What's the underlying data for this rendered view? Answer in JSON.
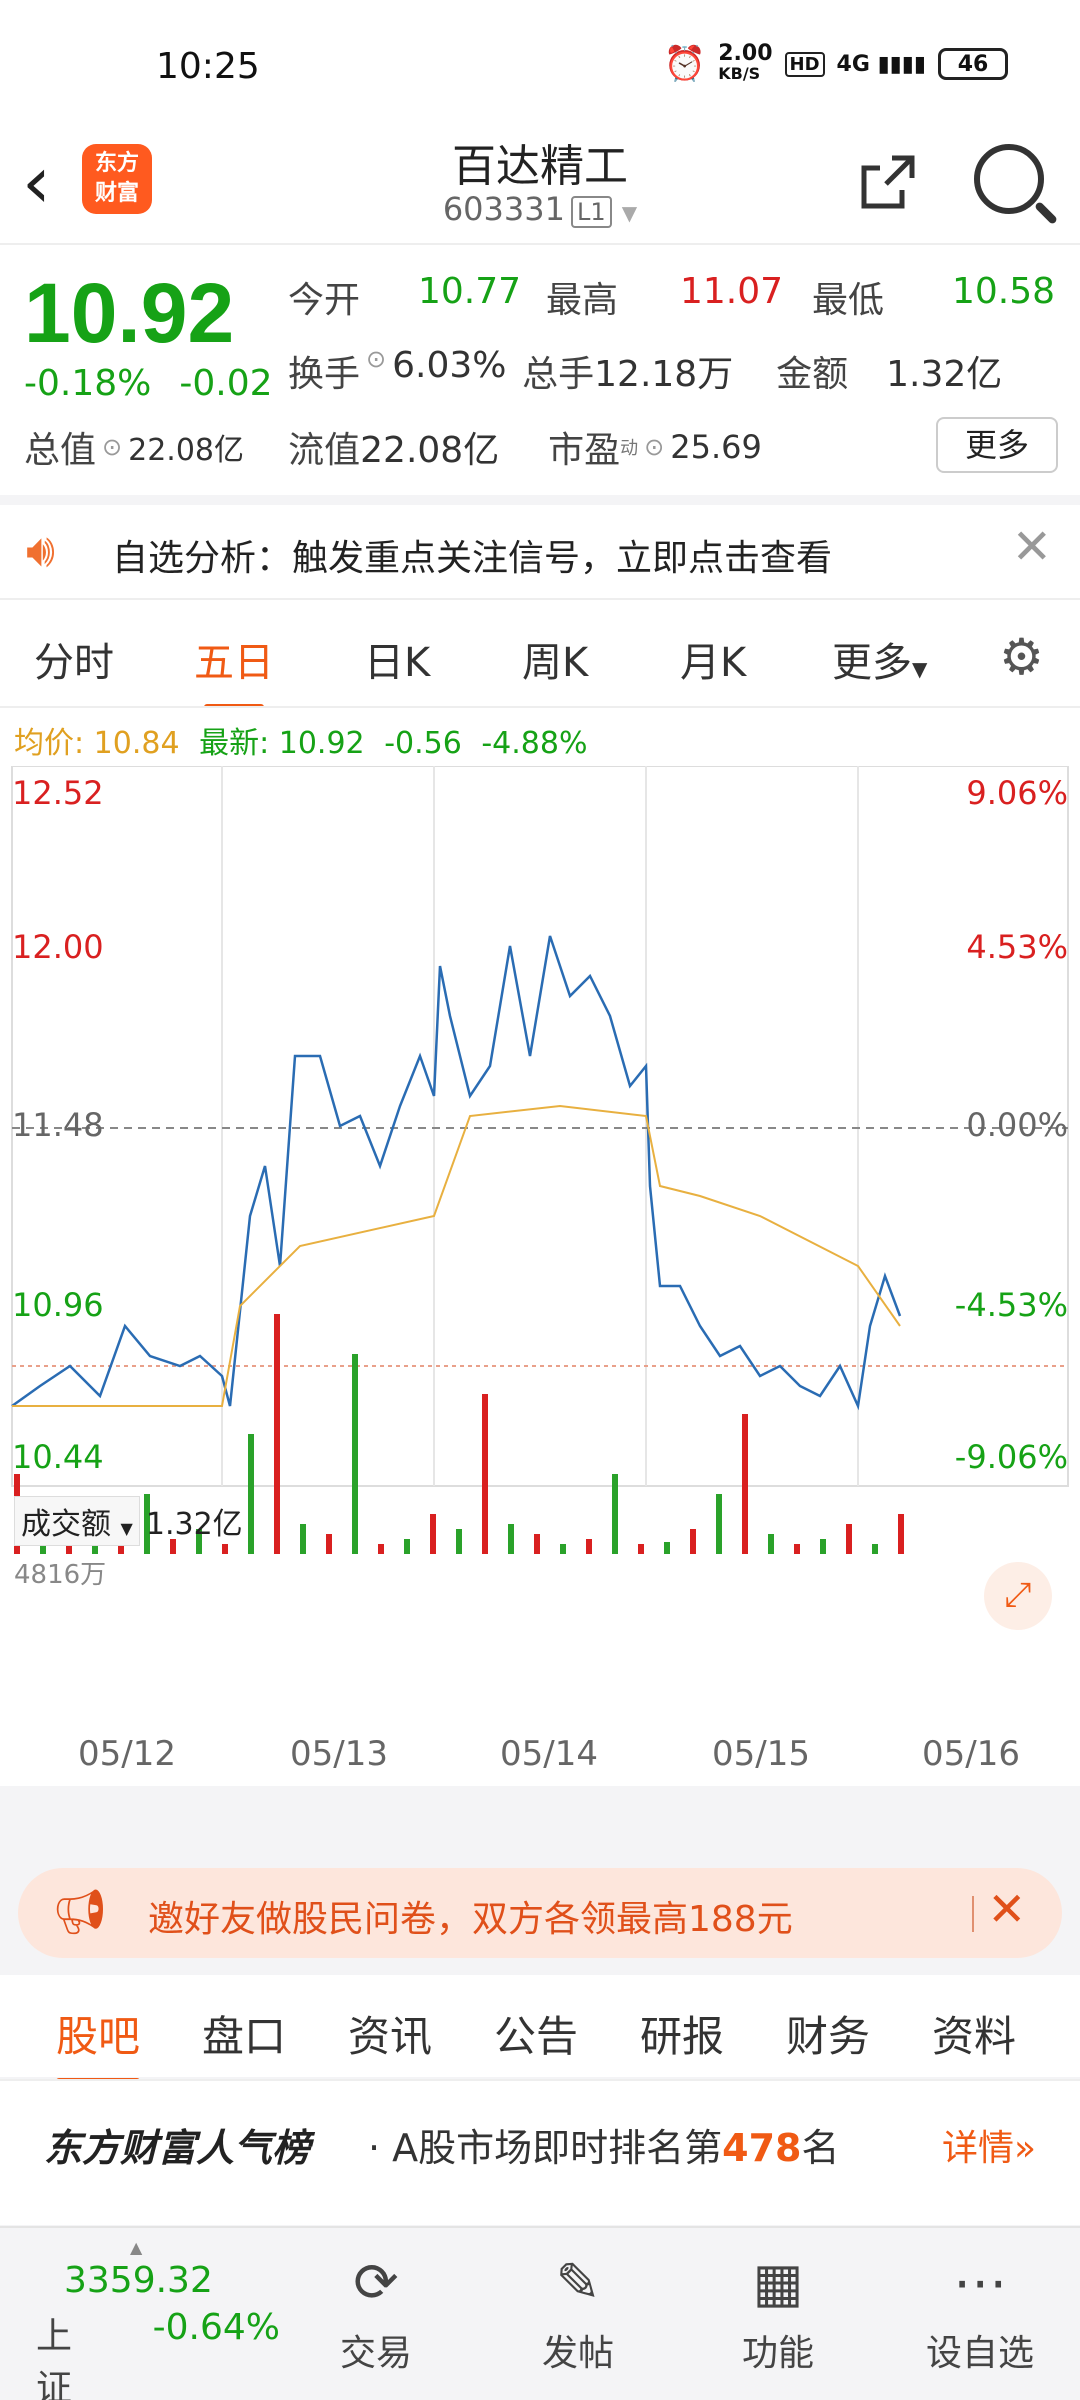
{
  "status_bar": {
    "time": "10:25",
    "net_speed": "2.00",
    "net_unit": "KB/S",
    "hd": "HD",
    "signal": "4G",
    "battery": "46"
  },
  "header": {
    "logo_text": "东方\n财富",
    "logo_l1": "东方",
    "logo_l2": "财富",
    "title": "百达精工",
    "code": "603331",
    "level": "L1"
  },
  "quote": {
    "price": "10.92",
    "change_pct": "-0.18%",
    "change": "-0.02",
    "open_label": "今开",
    "open": "10.77",
    "high_label": "最高",
    "high": "11.07",
    "low_label": "最低",
    "low": "10.58",
    "turnover_label": "换手",
    "turnover": "6.03%",
    "volume_label": "总手",
    "volume": "12.18万",
    "amount_label": "金额",
    "amount": "1.32亿",
    "total_value_label": "总值",
    "total_value": "22.08亿",
    "float_value_label": "流值",
    "float_value": "22.08亿",
    "pe_label": "市盈",
    "pe_sup": "动",
    "pe": "25.69",
    "more_button": "更多"
  },
  "alert": {
    "text": "自选分析：触发重点关注信号，立即点击查看"
  },
  "chart_tabs": [
    "分时",
    "五日",
    "日K",
    "周K",
    "月K",
    "更多"
  ],
  "active_chart_tab": "五日",
  "avg_bar": {
    "avg_label": "均价:",
    "avg": "10.84",
    "latest_label": "最新:",
    "latest": "10.92",
    "chg": "-0.56",
    "pct": "-4.88%"
  },
  "chart_data": {
    "type": "line",
    "y_left_ticks": [
      "12.52",
      "12.00",
      "11.48",
      "10.96",
      "10.44"
    ],
    "y_right_ticks": [
      "9.06%",
      "4.53%",
      "0.00%",
      "-4.53%",
      "-9.06%"
    ],
    "ylim": [
      10.44,
      12.52
    ],
    "x_labels": [
      "05/12",
      "05/13",
      "05/14",
      "05/15",
      "05/16"
    ],
    "volume_label": "成交额",
    "volume_total": "1.32亿",
    "volume_max_label": "4816万"
  },
  "promo": {
    "text": "邀好友做股民问卷，双方各领最高188元"
  },
  "footer_tabs": [
    "股吧",
    "盘口",
    "资讯",
    "公告",
    "研报",
    "财务",
    "资料"
  ],
  "active_footer_tab": "股吧",
  "rank": {
    "brand": "东方财富人气榜",
    "desc_prefix": "· A股市场即时排名第",
    "rank_no": "478",
    "desc_suffix": "名",
    "detail": "详情"
  },
  "nav": {
    "index_value": "3359.32",
    "index_name": "上证",
    "index_chg": "-0.64%",
    "items": [
      {
        "label": "交易",
        "icon": "yen-cycle-icon"
      },
      {
        "label": "发帖",
        "icon": "edit-icon"
      },
      {
        "label": "功能",
        "icon": "grid-icon"
      },
      {
        "label": "设自选",
        "icon": "more-circle-icon"
      }
    ]
  }
}
